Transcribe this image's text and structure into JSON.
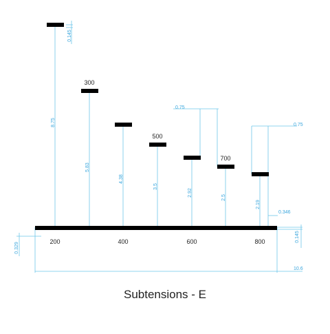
{
  "title": "Subtensions - E",
  "colors": {
    "dimension": "#6ec6ea",
    "dimension_text": "#3aa6dd",
    "bars": "#000000",
    "labels": "#222222"
  },
  "axis_labels": [
    "200",
    "400",
    "600",
    "800"
  ],
  "bar_labels": {
    "b300": "300",
    "b500": "500",
    "b700": "700"
  },
  "dimensions": {
    "top_gap": "0.145",
    "h200": "8.75",
    "h300": "5.83",
    "h400": "4.38",
    "h500": "3.5",
    "h600": "2.92",
    "h700": "2.5",
    "h800": "2.19",
    "width_600_700": "0.75",
    "width_800": "0.75",
    "bar_gap_800": "0.346",
    "base_thickness": "0.145",
    "base_offset": "0.329",
    "total_width": "10.6"
  }
}
